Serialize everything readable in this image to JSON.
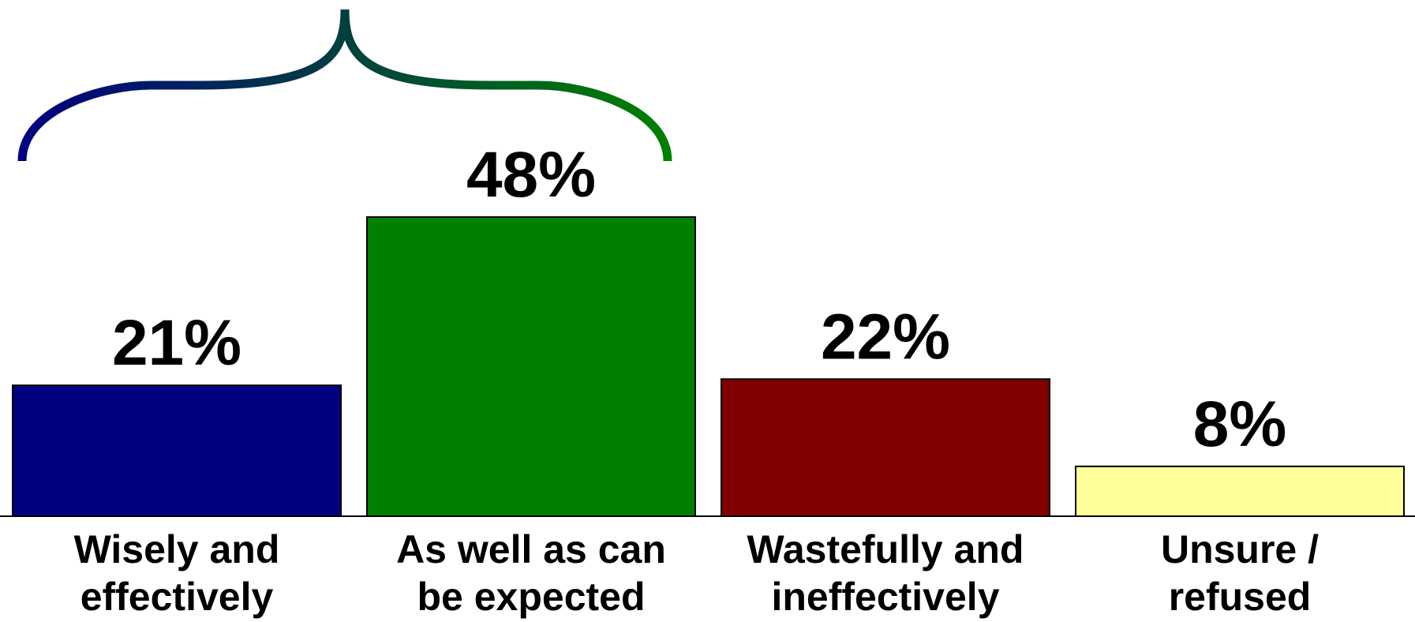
{
  "chart_data": {
    "type": "bar",
    "categories": [
      [
        "Wisely and",
        "effectively"
      ],
      [
        "As well as can",
        "be expected"
      ],
      [
        "Wastefully and",
        "ineffectively"
      ],
      [
        "Unsure /",
        "refused"
      ]
    ],
    "values": [
      21,
      48,
      22,
      8
    ],
    "value_labels": [
      "21%",
      "48%",
      "22%",
      "8%"
    ],
    "colors": [
      "#000080",
      "#008000",
      "#800000",
      "#FFFF99"
    ],
    "ylim": [
      0,
      48
    ],
    "grid": false,
    "title": "",
    "xlabel": "",
    "ylabel": "",
    "annotation": {
      "type": "brace",
      "spans_categories": [
        0,
        1
      ],
      "gradient_colors": [
        "#000080",
        "#008000"
      ]
    }
  }
}
